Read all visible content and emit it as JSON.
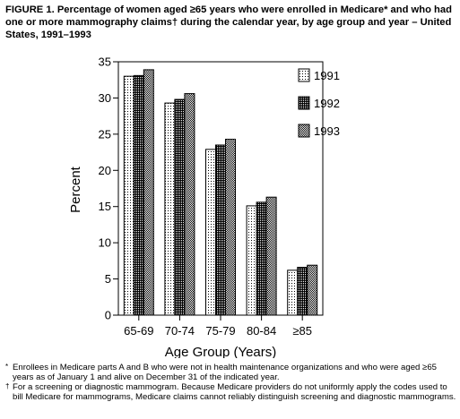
{
  "figure": {
    "title_lead": "FIGURE 1.",
    "title_text": "Percentage of women aged ≥65 years who were enrolled in Medicare* and who had one or more mammography claims† during the calendar year, by age group and year – United States, 1991–1993"
  },
  "footnotes": [
    {
      "marker": "*",
      "text": "Enrollees in Medicare parts A and B who were not in health maintenance organizations and who were aged ≥65 years as of January 1 and alive on December 31 of the indicated year."
    },
    {
      "marker": "†",
      "text": "For a screening or diagnostic mammogram. Because Medicare providers do not uniformly apply the codes used to bill Medicare for mammograms, Medicare claims cannot reliably distinguish screening and diagnostic mammograms."
    }
  ],
  "chart_data": {
    "type": "bar",
    "categories": [
      "65-69",
      "70-74",
      "75-79",
      "80-84",
      "≥85"
    ],
    "series": [
      {
        "name": "1991",
        "values": [
          33.0,
          29.3,
          22.9,
          15.1,
          6.2
        ],
        "pattern": "light-dots"
      },
      {
        "name": "1992",
        "values": [
          33.1,
          29.8,
          23.5,
          15.6,
          6.6
        ],
        "pattern": "dark-dots"
      },
      {
        "name": "1993",
        "values": [
          33.9,
          30.6,
          24.3,
          16.3,
          6.9
        ],
        "pattern": "checker"
      }
    ],
    "xlabel": "Age Group (Years)",
    "ylabel": "Percent",
    "ylim": [
      0,
      35
    ],
    "yticks": [
      0,
      5,
      10,
      15,
      20,
      25,
      30,
      35
    ],
    "grid": false,
    "legend_position": "top-right"
  }
}
